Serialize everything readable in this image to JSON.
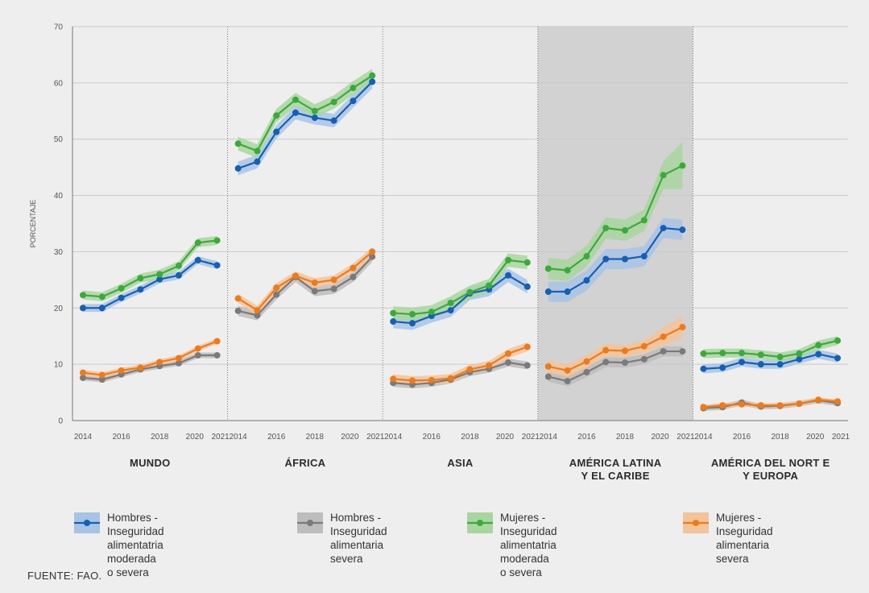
{
  "chart_data": {
    "type": "line",
    "ylabel": "PORCENTAJE",
    "ylim": [
      0,
      70
    ],
    "yticks": [
      0,
      10,
      20,
      30,
      40,
      50,
      60,
      70
    ],
    "x": [
      2014,
      2015,
      2016,
      2017,
      2018,
      2019,
      2020,
      2021
    ],
    "xtick_labels": [
      "2014",
      "2016",
      "2018",
      "2020",
      "2021"
    ],
    "highlighted_panel": "AMÉRICA LATINA\nY EL CARIBE",
    "panels": [
      {
        "region": "MUNDO",
        "series": [
          {
            "name": "Hombres - Inseguridad alimentatria moderada o severa",
            "values": [
              20.0,
              20.0,
              21.8,
              23.3,
              25.1,
              25.8,
              28.5,
              27.6
            ],
            "ci": [
              0.7,
              0.7,
              0.7,
              0.7,
              0.7,
              0.7,
              0.7,
              0.7
            ]
          },
          {
            "name": "Hombres - Inseguridad alimentaria severa",
            "values": [
              7.6,
              7.3,
              8.2,
              9.1,
              9.7,
              10.2,
              11.6,
              11.6
            ],
            "ci": [
              0.5,
              0.5,
              0.5,
              0.5,
              0.5,
              0.5,
              0.5,
              0.5
            ]
          },
          {
            "name": "Mujeres - Inseguridad alimentatria moderada o severa",
            "values": [
              22.3,
              22.0,
              23.5,
              25.3,
              26.0,
              27.5,
              31.6,
              32.0
            ],
            "ci": [
              0.8,
              0.8,
              0.8,
              0.8,
              0.8,
              0.8,
              0.8,
              0.8
            ]
          },
          {
            "name": "Mujeres - Inseguridad alimentaria severa",
            "values": [
              8.5,
              8.1,
              8.9,
              9.4,
              10.4,
              11.1,
              12.8,
              14.1
            ],
            "ci": [
              0.5,
              0.5,
              0.5,
              0.5,
              0.5,
              0.5,
              0.5,
              0.5
            ]
          }
        ]
      },
      {
        "region": "ÁFRICA",
        "series": [
          {
            "name": "Hombres - Inseguridad alimentatria moderada o severa",
            "values": [
              44.8,
              46.0,
              51.3,
              54.7,
              53.8,
              53.3,
              56.8,
              60.2
            ],
            "ci": [
              1.2,
              1.2,
              1.2,
              1.2,
              1.2,
              1.2,
              1.2,
              1.2
            ]
          },
          {
            "name": "Hombres - Inseguridad alimentaria severa",
            "values": [
              19.5,
              18.7,
              22.4,
              25.5,
              23.0,
              23.4,
              25.5,
              29.1
            ],
            "ci": [
              0.9,
              0.9,
              0.9,
              0.9,
              0.9,
              0.9,
              0.9,
              0.9
            ]
          },
          {
            "name": "Mujeres - Inseguridad alimentatria moderada o severa",
            "values": [
              49.2,
              47.9,
              54.2,
              57.0,
              55.0,
              56.6,
              59.1,
              61.3
            ],
            "ci": [
              1.2,
              1.2,
              1.2,
              1.2,
              1.2,
              1.2,
              1.2,
              1.2
            ]
          },
          {
            "name": "Mujeres - Inseguridad alimentaria severa",
            "values": [
              21.7,
              19.6,
              23.6,
              25.7,
              24.5,
              25.0,
              27.1,
              30.0
            ],
            "ci": [
              0.8,
              0.8,
              0.8,
              0.8,
              0.8,
              0.8,
              0.8,
              0.8
            ]
          }
        ]
      },
      {
        "region": "ASIA",
        "series": [
          {
            "name": "Hombres - Inseguridad alimentatria moderada o severa",
            "values": [
              17.6,
              17.3,
              18.6,
              19.6,
              22.6,
              23.3,
              25.8,
              23.8
            ],
            "ci": [
              1.2,
              1.2,
              1.2,
              1.2,
              1.2,
              1.2,
              1.2,
              1.2
            ]
          },
          {
            "name": "Hombres - Inseguridad alimentaria severa",
            "values": [
              6.7,
              6.4,
              6.7,
              7.3,
              8.6,
              9.2,
              10.3,
              9.8
            ],
            "ci": [
              0.7,
              0.7,
              0.7,
              0.7,
              0.7,
              0.7,
              0.7,
              0.7
            ]
          },
          {
            "name": "Mujeres - Inseguridad alimentatria moderada o severa",
            "values": [
              19.1,
              18.9,
              19.3,
              20.9,
              22.8,
              24.0,
              28.5,
              28.1
            ],
            "ci": [
              1.2,
              1.2,
              1.2,
              1.2,
              1.2,
              1.2,
              1.2,
              1.2
            ]
          },
          {
            "name": "Mujeres - Inseguridad alimentaria severa",
            "values": [
              7.4,
              7.1,
              7.2,
              7.5,
              9.1,
              9.8,
              11.9,
              13.1
            ],
            "ci": [
              0.8,
              0.8,
              0.8,
              0.8,
              0.8,
              0.8,
              0.8,
              0.8
            ]
          }
        ]
      },
      {
        "region": "AMÉRICA LATINA\nY EL CARIBE",
        "series": [
          {
            "name": "Hombres - Inseguridad alimentatria moderada o severa",
            "values": [
              22.9,
              22.9,
              24.9,
              28.7,
              28.7,
              29.2,
              34.2,
              33.9
            ],
            "ci": [
              1.8,
              1.8,
              1.8,
              1.8,
              1.8,
              1.8,
              1.8,
              1.8
            ]
          },
          {
            "name": "Hombres - Inseguridad alimentaria severa",
            "values": [
              7.8,
              7.0,
              8.6,
              10.4,
              10.3,
              10.9,
              12.3,
              12.3
            ],
            "ci": [
              0.9,
              0.9,
              0.9,
              0.9,
              0.9,
              0.9,
              0.9,
              0.9
            ]
          },
          {
            "name": "Mujeres - Inseguridad alimentatria moderada o severa",
            "values": [
              27.0,
              26.7,
              29.2,
              34.2,
              33.8,
              35.6,
              43.6,
              45.3
            ],
            "ci": [
              1.9,
              1.9,
              1.9,
              1.9,
              1.9,
              1.9,
              2.5,
              4.2
            ]
          },
          {
            "name": "Mujeres - Inseguridad alimentaria severa",
            "values": [
              9.6,
              8.9,
              10.5,
              12.5,
              12.4,
              13.2,
              14.9,
              16.6
            ],
            "ci": [
              1.1,
              1.1,
              1.1,
              1.1,
              1.1,
              1.1,
              1.6,
              2.0
            ]
          }
        ]
      },
      {
        "region": "AMÉRICA DEL NORT E\nY EUROPA",
        "series": [
          {
            "name": "Hombres - Inseguridad alimentatria moderada o severa",
            "values": [
              9.2,
              9.4,
              10.4,
              10.0,
              10.0,
              10.9,
              11.8,
              11.1
            ],
            "ci": [
              0.8,
              0.8,
              0.8,
              0.8,
              0.8,
              0.8,
              0.8,
              0.8
            ]
          },
          {
            "name": "Hombres - Inseguridad alimentaria severa",
            "values": [
              2.2,
              2.4,
              3.2,
              2.5,
              2.6,
              3.0,
              3.6,
              3.1
            ],
            "ci": [
              0.5,
              0.5,
              0.5,
              0.5,
              0.5,
              0.5,
              0.5,
              0.5
            ]
          },
          {
            "name": "Mujeres - Inseguridad alimentatria moderada o severa",
            "values": [
              11.9,
              12.0,
              12.0,
              11.7,
              11.3,
              11.9,
              13.4,
              14.2
            ],
            "ci": [
              0.8,
              0.8,
              0.8,
              0.8,
              0.8,
              0.8,
              0.8,
              0.8
            ]
          },
          {
            "name": "Mujeres - Inseguridad alimentaria severa",
            "values": [
              2.4,
              2.7,
              2.9,
              2.7,
              2.7,
              3.0,
              3.7,
              3.4
            ],
            "ci": [
              0.4,
              0.4,
              0.4,
              0.4,
              0.4,
              0.4,
              0.4,
              0.4
            ]
          }
        ]
      }
    ],
    "legend": [
      {
        "label": "Hombres - Inseguridad\nalimentatria moderada o severa",
        "line_color": "#1560b5",
        "band_color": "#a8c4e4"
      },
      {
        "label": "Hombres - Inseguridad\nalimentaria severa",
        "line_color": "#7a7a7a",
        "band_color": "#bdbdbd"
      },
      {
        "label": "Mujeres - Inseguridad\nalimentatria moderada o severa",
        "line_color": "#3aab3a",
        "band_color": "#a9d6a0"
      },
      {
        "label": "Mujeres - Inseguridad\nalimentaria severa",
        "line_color": "#ef7a1a",
        "band_color": "#f3c49a"
      }
    ],
    "series_order_draw": [
      0,
      1,
      3,
      2
    ],
    "grid": true,
    "highlight_color": "#d2d2d2"
  },
  "source": "FUENTE: FAO."
}
